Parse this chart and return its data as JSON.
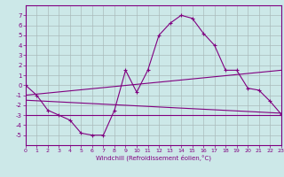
{
  "xlabel": "Windchill (Refroidissement éolien,°C)",
  "bg_color": "#cce8e8",
  "line_color": "#800080",
  "grid_color": "#aabbbb",
  "x_hours": [
    0,
    1,
    2,
    3,
    4,
    5,
    6,
    7,
    8,
    9,
    10,
    11,
    12,
    13,
    14,
    15,
    16,
    17,
    18,
    19,
    20,
    21,
    22,
    23
  ],
  "line1_y": [
    0,
    -1,
    -2.5,
    -3.0,
    -3.5,
    -4.8,
    -5.0,
    -5.0,
    -2.5,
    1.5,
    -0.7,
    1.5,
    5.0,
    6.2,
    7.0,
    6.7,
    5.2,
    4.0,
    1.5,
    1.5,
    -0.3,
    -0.5,
    -1.6,
    -2.9
  ],
  "line2_y": [
    -3.0,
    -3.0,
    -3.0,
    -3.0,
    -3.0,
    -3.0,
    -3.0,
    -3.0,
    -3.0,
    -3.0,
    -3.0,
    -3.0,
    -3.0,
    -3.0,
    -3.0,
    -3.0,
    -3.0,
    -3.0,
    -3.0,
    -3.0,
    -3.0,
    -3.0,
    -3.0,
    -3.0
  ],
  "line3_x": [
    0,
    23
  ],
  "line3_y": [
    -1.0,
    1.5
  ],
  "line4_x": [
    0,
    23
  ],
  "line4_y": [
    -1.5,
    -2.8
  ],
  "ylim": [
    -6,
    8
  ],
  "xlim": [
    0,
    23
  ],
  "yticks": [
    7,
    6,
    5,
    4,
    3,
    2,
    1,
    0,
    -1,
    -2,
    -3,
    -4,
    -5
  ],
  "xticks": [
    0,
    1,
    2,
    3,
    4,
    5,
    6,
    7,
    8,
    9,
    10,
    11,
    12,
    13,
    14,
    15,
    16,
    17,
    18,
    19,
    20,
    21,
    22,
    23
  ]
}
